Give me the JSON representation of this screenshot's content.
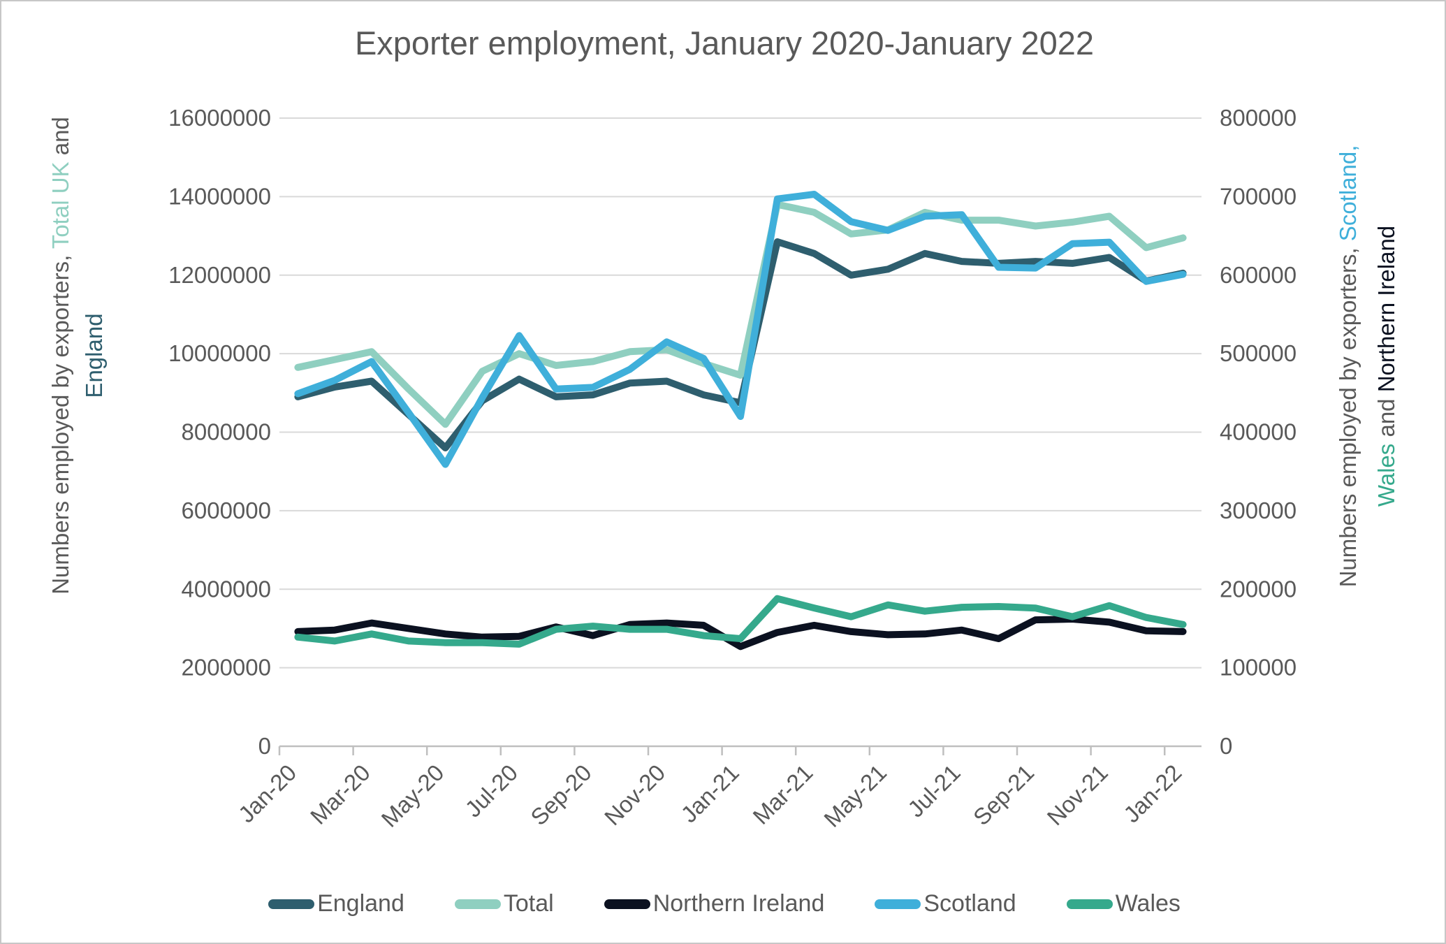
{
  "chart_data": {
    "type": "line",
    "title": "Exporter employment, January 2020-January 2022",
    "grid": true,
    "legend_position": "bottom",
    "x": [
      "Jan-20",
      "Feb-20",
      "Mar-20",
      "Apr-20",
      "May-20",
      "Jun-20",
      "Jul-20",
      "Aug-20",
      "Sep-20",
      "Oct-20",
      "Nov-20",
      "Dec-20",
      "Jan-21",
      "Feb-21",
      "Mar-21",
      "Apr-21",
      "May-21",
      "Jun-21",
      "Jul-21",
      "Aug-21",
      "Sep-21",
      "Oct-21",
      "Nov-21",
      "Dec-21",
      "Jan-22"
    ],
    "x_label_every": 2,
    "x_tick_labels_shown": [
      "Jan-20",
      "Mar-20",
      "May-20",
      "Jul-20",
      "Sep-20",
      "Nov-20",
      "Jan-21",
      "Mar-21",
      "May-21",
      "Jul-21",
      "Sep-21",
      "Nov-21",
      "Jan-22"
    ],
    "left_axis": {
      "min": 0,
      "max": 16000000,
      "tick_step": 2000000,
      "tick_labels": [
        "0",
        "2000000",
        "4000000",
        "6000000",
        "8000000",
        "10000000",
        "12000000",
        "14000000",
        "16000000"
      ],
      "title_line1": [
        {
          "text": "Numbers employed by exporters, ",
          "color": "#595959"
        },
        {
          "text": "Total UK",
          "color": "#8fcfc0"
        },
        {
          "text": " and",
          "color": "#595959"
        }
      ],
      "title_line2": [
        {
          "text": "England",
          "color": "#2e5e6e"
        }
      ]
    },
    "right_axis": {
      "min": 0,
      "max": 800000,
      "tick_step": 100000,
      "tick_labels": [
        "0",
        "100000",
        "200000",
        "300000",
        "400000",
        "500000",
        "600000",
        "700000",
        "800000"
      ],
      "title_line1": [
        {
          "text": "Numbers employed by exporters, ",
          "color": "#595959"
        },
        {
          "text": "Scotland,",
          "color": "#3fafda"
        }
      ],
      "title_line2": [
        {
          "text": "Wales",
          "color": "#35a98c"
        },
        {
          "text": " and ",
          "color": "#595959"
        },
        {
          "text": "Northern Ireland",
          "color": "#0b1120"
        }
      ]
    },
    "series": [
      {
        "name": "England",
        "axis": "left",
        "color": "#2e5e6e",
        "values": [
          8900000,
          9150000,
          9300000,
          8450000,
          7600000,
          8800000,
          9350000,
          8900000,
          8950000,
          9250000,
          9300000,
          8950000,
          8750000,
          12850000,
          12550000,
          12000000,
          12150000,
          12550000,
          12350000,
          12300000,
          12350000,
          12300000,
          12450000,
          11850000,
          12050000
        ]
      },
      {
        "name": "Total",
        "axis": "left",
        "color": "#8fcfc0",
        "values": [
          9650000,
          9850000,
          10050000,
          9100000,
          8200000,
          9550000,
          10000000,
          9700000,
          9800000,
          10050000,
          10100000,
          9750000,
          9450000,
          13800000,
          13600000,
          13050000,
          13150000,
          13600000,
          13400000,
          13400000,
          13250000,
          13350000,
          13500000,
          12700000,
          12950000
        ]
      },
      {
        "name": "Northern Ireland",
        "axis": "right",
        "color": "#0b1120",
        "values": [
          146000,
          148000,
          157000,
          150000,
          143000,
          139000,
          140000,
          152000,
          141000,
          155000,
          157000,
          154000,
          127000,
          145000,
          154000,
          146000,
          142000,
          143000,
          148000,
          137000,
          161000,
          162000,
          158000,
          147000,
          146000
        ]
      },
      {
        "name": "Scotland",
        "axis": "right",
        "color": "#3fafda",
        "values": [
          449000,
          466000,
          490000,
          425000,
          359000,
          444000,
          523000,
          455000,
          457000,
          480000,
          515000,
          494000,
          420000,
          697000,
          703000,
          668000,
          657000,
          675000,
          677000,
          610000,
          609000,
          640000,
          642000,
          592000,
          601000
        ]
      },
      {
        "name": "Wales",
        "axis": "right",
        "color": "#35a98c",
        "values": [
          139000,
          134000,
          143000,
          134000,
          132000,
          132000,
          130000,
          149000,
          153000,
          149000,
          149000,
          141000,
          137000,
          188000,
          176000,
          165000,
          180000,
          172000,
          177000,
          178000,
          176000,
          165000,
          179000,
          164000,
          155000
        ]
      }
    ]
  },
  "colors": {
    "text_gray": "#595959",
    "gridline": "#d9d9d9",
    "axis_line": "#bfbfbf",
    "background": "#ffffff"
  }
}
